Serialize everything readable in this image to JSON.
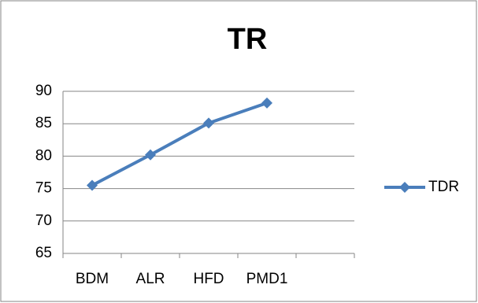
{
  "chart_data": {
    "type": "line",
    "title": "TR",
    "categories": [
      "BDM",
      "ALR",
      "HFD",
      "PMD1",
      null
    ],
    "series": [
      {
        "name": "TDR",
        "color": "#4a7ebb",
        "values": [
          75.5,
          80.2,
          85.1,
          88.2,
          null
        ]
      }
    ],
    "ylim": [
      65,
      90
    ],
    "yticks": [
      65,
      70,
      75,
      80,
      85,
      90
    ],
    "grid": true,
    "legend": "right"
  }
}
